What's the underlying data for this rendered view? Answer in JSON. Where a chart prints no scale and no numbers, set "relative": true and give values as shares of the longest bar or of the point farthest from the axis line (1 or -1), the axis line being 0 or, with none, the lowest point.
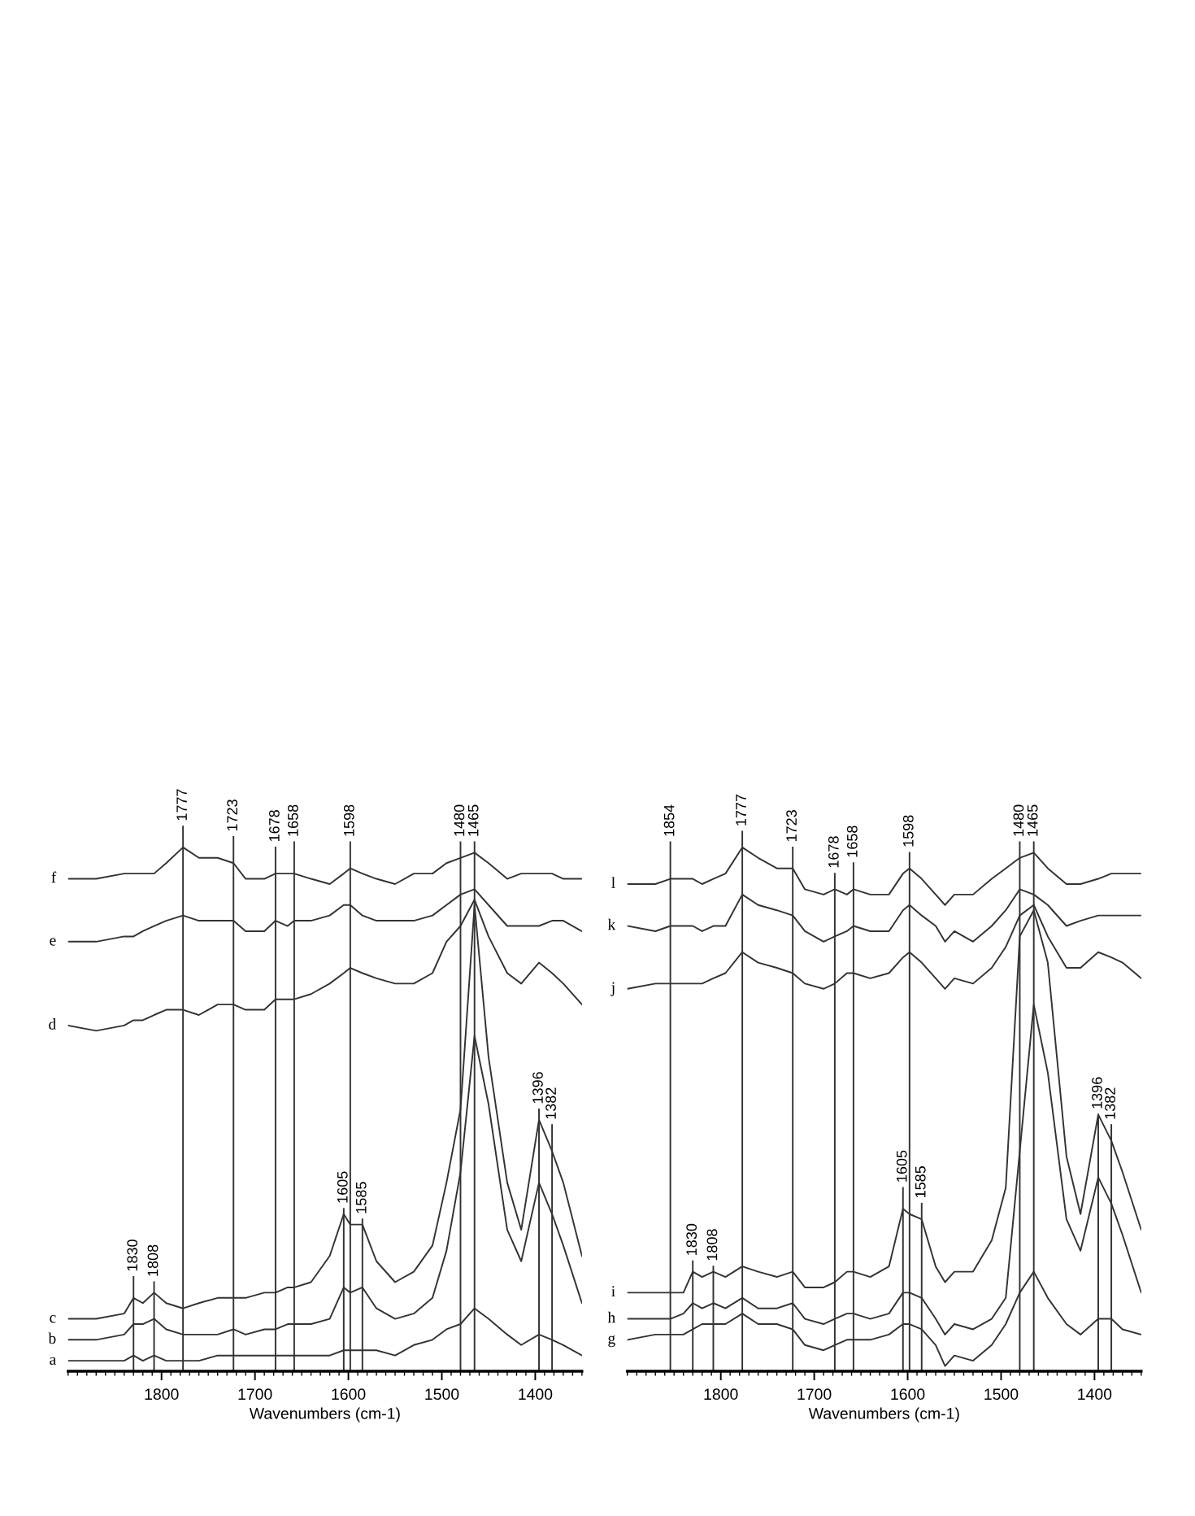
{
  "chart_data": [
    {
      "type": "line",
      "relative": true,
      "xlabel": "Wavenumbers (cm-1)",
      "xlim": [
        1900,
        1350
      ],
      "xticks": [
        1800,
        1700,
        1600,
        1500,
        1400
      ],
      "grid": false,
      "legend": false,
      "marker": "none",
      "line_style": "solid",
      "x": [
        1900,
        1870,
        1840,
        1830,
        1820,
        1808,
        1795,
        1777,
        1760,
        1740,
        1723,
        1710,
        1690,
        1678,
        1665,
        1658,
        1640,
        1620,
        1605,
        1598,
        1585,
        1570,
        1550,
        1530,
        1510,
        1495,
        1480,
        1465,
        1450,
        1430,
        1415,
        1396,
        1382,
        1370,
        1350
      ],
      "series": [
        {
          "name": "f",
          "color": "#333333",
          "values": [
            0.94,
            0.94,
            0.95,
            0.95,
            0.95,
            0.95,
            0.97,
            1.0,
            0.98,
            0.98,
            0.97,
            0.94,
            0.94,
            0.95,
            0.95,
            0.95,
            0.94,
            0.93,
            0.95,
            0.96,
            0.95,
            0.94,
            0.93,
            0.95,
            0.95,
            0.97,
            0.98,
            0.99,
            0.97,
            0.94,
            0.95,
            0.95,
            0.95,
            0.94,
            0.94
          ]
        },
        {
          "name": "e",
          "color": "#333333",
          "values": [
            0.82,
            0.82,
            0.83,
            0.83,
            0.84,
            0.85,
            0.86,
            0.87,
            0.86,
            0.86,
            0.86,
            0.84,
            0.84,
            0.86,
            0.85,
            0.86,
            0.86,
            0.87,
            0.89,
            0.89,
            0.87,
            0.86,
            0.86,
            0.86,
            0.87,
            0.89,
            0.91,
            0.92,
            0.89,
            0.85,
            0.85,
            0.85,
            0.86,
            0.86,
            0.84
          ]
        },
        {
          "name": "d",
          "color": "#333333",
          "values": [
            0.66,
            0.65,
            0.66,
            0.67,
            0.67,
            0.68,
            0.69,
            0.69,
            0.68,
            0.7,
            0.7,
            0.69,
            0.69,
            0.71,
            0.71,
            0.71,
            0.72,
            0.74,
            0.76,
            0.77,
            0.76,
            0.75,
            0.74,
            0.74,
            0.76,
            0.82,
            0.85,
            0.9,
            0.83,
            0.76,
            0.74,
            0.78,
            0.76,
            0.74,
            0.7
          ]
        },
        {
          "name": "c",
          "color": "#333333",
          "values": [
            0.1,
            0.1,
            0.11,
            0.14,
            0.13,
            0.15,
            0.13,
            0.12,
            0.13,
            0.14,
            0.14,
            0.14,
            0.15,
            0.15,
            0.16,
            0.16,
            0.17,
            0.22,
            0.3,
            0.28,
            0.28,
            0.21,
            0.17,
            0.19,
            0.24,
            0.36,
            0.5,
            0.89,
            0.6,
            0.36,
            0.27,
            0.48,
            0.42,
            0.36,
            0.22
          ]
        },
        {
          "name": "b",
          "color": "#333333",
          "values": [
            0.06,
            0.06,
            0.07,
            0.09,
            0.09,
            0.1,
            0.08,
            0.07,
            0.07,
            0.07,
            0.08,
            0.07,
            0.08,
            0.08,
            0.09,
            0.09,
            0.09,
            0.1,
            0.16,
            0.15,
            0.16,
            0.12,
            0.1,
            0.11,
            0.14,
            0.23,
            0.38,
            0.64,
            0.51,
            0.27,
            0.21,
            0.36,
            0.3,
            0.24,
            0.13
          ]
        },
        {
          "name": "a",
          "color": "#333333",
          "values": [
            0.02,
            0.02,
            0.02,
            0.03,
            0.02,
            0.03,
            0.02,
            0.02,
            0.02,
            0.03,
            0.03,
            0.03,
            0.03,
            0.03,
            0.03,
            0.03,
            0.03,
            0.03,
            0.04,
            0.04,
            0.04,
            0.04,
            0.03,
            0.05,
            0.06,
            0.08,
            0.09,
            0.12,
            0.1,
            0.07,
            0.05,
            0.07,
            0.06,
            0.05,
            0.03
          ]
        }
      ],
      "ref_lines": [
        {
          "axis": "x",
          "value": 1830,
          "color": "#333333"
        },
        {
          "axis": "x",
          "value": 1808,
          "color": "#333333"
        },
        {
          "axis": "x",
          "value": 1777,
          "color": "#333333"
        },
        {
          "axis": "x",
          "value": 1723,
          "color": "#333333"
        },
        {
          "axis": "x",
          "value": 1678,
          "color": "#333333"
        },
        {
          "axis": "x",
          "value": 1658,
          "color": "#333333"
        },
        {
          "axis": "x",
          "value": 1605,
          "color": "#333333"
        },
        {
          "axis": "x",
          "value": 1598,
          "color": "#333333"
        },
        {
          "axis": "x",
          "value": 1585,
          "color": "#333333"
        },
        {
          "axis": "x",
          "value": 1480,
          "color": "#333333"
        },
        {
          "axis": "x",
          "value": 1465,
          "color": "#333333"
        },
        {
          "axis": "x",
          "value": 1396,
          "color": "#333333"
        },
        {
          "axis": "x",
          "value": 1382,
          "color": "#333333"
        }
      ],
      "annotations": [
        {
          "text": "1830",
          "x": 1830,
          "y": 0.18
        },
        {
          "text": "1808",
          "x": 1808,
          "y": 0.17
        },
        {
          "text": "1777",
          "x": 1777,
          "y": 1.04
        },
        {
          "text": "1723",
          "x": 1723,
          "y": 1.02
        },
        {
          "text": "1678",
          "x": 1678,
          "y": 1.0
        },
        {
          "text": "1658",
          "x": 1658,
          "y": 1.01
        },
        {
          "text": "1605",
          "x": 1605,
          "y": 0.31
        },
        {
          "text": "1598",
          "x": 1598,
          "y": 1.01
        },
        {
          "text": "1585",
          "x": 1585,
          "y": 0.29
        },
        {
          "text": "1480",
          "x": 1480,
          "y": 1.01
        },
        {
          "text": "1465",
          "x": 1465,
          "y": 1.01
        },
        {
          "text": "1396",
          "x": 1396,
          "y": 0.5
        },
        {
          "text": "1382",
          "x": 1382,
          "y": 0.47
        }
      ]
    },
    {
      "type": "line",
      "relative": true,
      "xlabel": "Wavenumbers (cm-1)",
      "xlim": [
        1900,
        1350
      ],
      "xticks": [
        1800,
        1700,
        1600,
        1500,
        1400
      ],
      "grid": false,
      "legend": false,
      "marker": "none",
      "line_style": "solid",
      "x": [
        1900,
        1870,
        1854,
        1840,
        1830,
        1820,
        1808,
        1795,
        1777,
        1760,
        1740,
        1723,
        1710,
        1690,
        1678,
        1665,
        1658,
        1640,
        1620,
        1605,
        1598,
        1585,
        1570,
        1560,
        1550,
        1530,
        1510,
        1495,
        1480,
        1465,
        1450,
        1430,
        1415,
        1396,
        1382,
        1370,
        1350
      ],
      "series": [
        {
          "name": "l",
          "color": "#333333",
          "values": [
            0.93,
            0.93,
            0.94,
            0.94,
            0.94,
            0.93,
            0.94,
            0.95,
            1.0,
            0.98,
            0.96,
            0.96,
            0.92,
            0.91,
            0.92,
            0.91,
            0.92,
            0.91,
            0.91,
            0.95,
            0.96,
            0.94,
            0.91,
            0.89,
            0.91,
            0.91,
            0.94,
            0.96,
            0.98,
            0.99,
            0.96,
            0.93,
            0.93,
            0.94,
            0.95,
            0.95,
            0.95
          ]
        },
        {
          "name": "k",
          "color": "#333333",
          "values": [
            0.85,
            0.84,
            0.85,
            0.85,
            0.85,
            0.84,
            0.85,
            0.85,
            0.91,
            0.89,
            0.88,
            0.87,
            0.84,
            0.82,
            0.83,
            0.84,
            0.85,
            0.84,
            0.84,
            0.88,
            0.89,
            0.87,
            0.85,
            0.82,
            0.84,
            0.82,
            0.85,
            0.88,
            0.92,
            0.91,
            0.89,
            0.85,
            0.86,
            0.87,
            0.87,
            0.87,
            0.87
          ]
        },
        {
          "name": "j",
          "color": "#333333",
          "values": [
            0.73,
            0.74,
            0.74,
            0.74,
            0.74,
            0.74,
            0.75,
            0.76,
            0.8,
            0.78,
            0.77,
            0.76,
            0.74,
            0.73,
            0.74,
            0.76,
            0.76,
            0.75,
            0.76,
            0.79,
            0.8,
            0.78,
            0.75,
            0.73,
            0.75,
            0.74,
            0.77,
            0.81,
            0.87,
            0.89,
            0.83,
            0.77,
            0.77,
            0.8,
            0.79,
            0.78,
            0.75
          ]
        },
        {
          "name": "i",
          "color": "#333333",
          "values": [
            0.15,
            0.15,
            0.15,
            0.15,
            0.19,
            0.18,
            0.19,
            0.18,
            0.2,
            0.19,
            0.18,
            0.19,
            0.16,
            0.16,
            0.17,
            0.19,
            0.19,
            0.18,
            0.2,
            0.31,
            0.3,
            0.29,
            0.2,
            0.17,
            0.19,
            0.19,
            0.25,
            0.35,
            0.83,
            0.88,
            0.78,
            0.41,
            0.3,
            0.49,
            0.44,
            0.38,
            0.27
          ]
        },
        {
          "name": "h",
          "color": "#333333",
          "values": [
            0.1,
            0.1,
            0.1,
            0.11,
            0.13,
            0.12,
            0.13,
            0.12,
            0.14,
            0.12,
            0.12,
            0.13,
            0.1,
            0.09,
            0.1,
            0.11,
            0.11,
            0.1,
            0.11,
            0.15,
            0.15,
            0.14,
            0.1,
            0.07,
            0.09,
            0.08,
            0.1,
            0.14,
            0.42,
            0.7,
            0.57,
            0.29,
            0.23,
            0.37,
            0.32,
            0.26,
            0.15
          ]
        },
        {
          "name": "g",
          "color": "#333333",
          "values": [
            0.06,
            0.07,
            0.07,
            0.07,
            0.08,
            0.09,
            0.09,
            0.09,
            0.11,
            0.09,
            0.09,
            0.08,
            0.05,
            0.04,
            0.05,
            0.06,
            0.06,
            0.06,
            0.07,
            0.09,
            0.09,
            0.08,
            0.05,
            0.01,
            0.03,
            0.02,
            0.05,
            0.09,
            0.15,
            0.19,
            0.14,
            0.09,
            0.07,
            0.1,
            0.1,
            0.08,
            0.07
          ]
        }
      ],
      "ref_lines": [
        {
          "axis": "x",
          "value": 1854,
          "color": "#333333"
        },
        {
          "axis": "x",
          "value": 1830,
          "color": "#333333"
        },
        {
          "axis": "x",
          "value": 1808,
          "color": "#333333"
        },
        {
          "axis": "x",
          "value": 1777,
          "color": "#333333"
        },
        {
          "axis": "x",
          "value": 1723,
          "color": "#333333"
        },
        {
          "axis": "x",
          "value": 1678,
          "color": "#333333"
        },
        {
          "axis": "x",
          "value": 1658,
          "color": "#333333"
        },
        {
          "axis": "x",
          "value": 1605,
          "color": "#333333"
        },
        {
          "axis": "x",
          "value": 1598,
          "color": "#333333"
        },
        {
          "axis": "x",
          "value": 1585,
          "color": "#333333"
        },
        {
          "axis": "x",
          "value": 1480,
          "color": "#333333"
        },
        {
          "axis": "x",
          "value": 1465,
          "color": "#333333"
        },
        {
          "axis": "x",
          "value": 1396,
          "color": "#333333"
        },
        {
          "axis": "x",
          "value": 1382,
          "color": "#333333"
        }
      ],
      "annotations": [
        {
          "text": "1854",
          "x": 1854,
          "y": 1.01
        },
        {
          "text": "1830",
          "x": 1830,
          "y": 0.21
        },
        {
          "text": "1808",
          "x": 1808,
          "y": 0.2
        },
        {
          "text": "1777",
          "x": 1777,
          "y": 1.03
        },
        {
          "text": "1723",
          "x": 1723,
          "y": 1.0
        },
        {
          "text": "1678",
          "x": 1678,
          "y": 0.95
        },
        {
          "text": "1658",
          "x": 1658,
          "y": 0.97
        },
        {
          "text": "1605",
          "x": 1605,
          "y": 0.35
        },
        {
          "text": "1598",
          "x": 1598,
          "y": 0.99
        },
        {
          "text": "1585",
          "x": 1585,
          "y": 0.32
        },
        {
          "text": "1480",
          "x": 1480,
          "y": 1.01
        },
        {
          "text": "1465",
          "x": 1465,
          "y": 1.01
        },
        {
          "text": "1396",
          "x": 1396,
          "y": 0.49
        },
        {
          "text": "1382",
          "x": 1382,
          "y": 0.47
        }
      ]
    }
  ]
}
